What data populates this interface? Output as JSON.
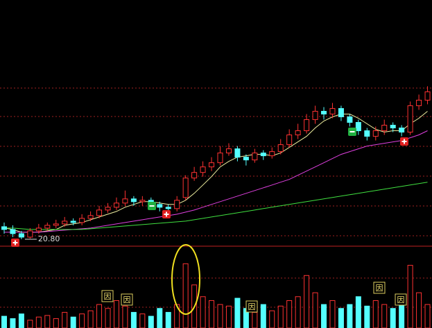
{
  "chart_data": {
    "type": "candlestick",
    "ylim": [
      20.3,
      38
    ],
    "up_color": "#ff3232",
    "down_color": "#54ffff",
    "open": [
      21.7,
      21.5,
      21.2,
      20.95,
      21.4,
      21.6,
      21.8,
      21.9,
      22.1,
      22.0,
      22.3,
      22.5,
      22.9,
      23.1,
      23.4,
      23.7,
      23.5,
      23.6,
      23.3,
      23.1,
      23.0,
      23.8,
      25.2,
      25.6,
      26.0,
      26.3,
      27.0,
      27.3,
      26.7,
      26.5,
      27.0,
      26.8,
      27.1,
      27.6,
      28.3,
      28.6,
      29.4,
      30.0,
      29.8,
      30.2,
      29.6,
      29.2,
      28.6,
      28.2,
      28.6,
      29.0,
      28.8,
      28.5,
      30.4,
      30.8
    ],
    "high": [
      22.0,
      21.8,
      21.4,
      21.6,
      21.9,
      22.0,
      22.2,
      22.4,
      22.3,
      22.6,
      22.8,
      23.2,
      23.4,
      23.8,
      24.3,
      23.9,
      23.9,
      23.8,
      23.5,
      23.3,
      23.9,
      25.4,
      26.0,
      26.4,
      26.7,
      27.5,
      27.7,
      27.5,
      26.9,
      27.3,
      27.2,
      27.4,
      28.0,
      28.7,
      29.1,
      29.8,
      30.4,
      30.3,
      30.6,
      30.4,
      29.8,
      29.4,
      28.8,
      28.9,
      29.4,
      29.2,
      29.0,
      30.7,
      31.2,
      31.8
    ],
    "low": [
      21.2,
      20.95,
      20.8,
      20.85,
      21.2,
      21.4,
      21.6,
      21.7,
      21.8,
      21.8,
      22.1,
      22.3,
      22.7,
      22.9,
      23.2,
      23.2,
      23.2,
      23.0,
      22.8,
      22.7,
      22.8,
      23.6,
      25.0,
      25.3,
      25.7,
      26.1,
      26.8,
      26.4,
      26.1,
      26.3,
      26.5,
      26.6,
      26.9,
      27.4,
      28.0,
      28.4,
      29.1,
      29.4,
      29.5,
      29.3,
      28.9,
      28.3,
      27.9,
      27.9,
      28.3,
      28.5,
      28.2,
      28.3,
      30.1,
      30.5
    ],
    "close": [
      21.5,
      21.2,
      20.95,
      21.4,
      21.6,
      21.8,
      21.9,
      22.1,
      22.0,
      22.3,
      22.5,
      22.9,
      23.1,
      23.4,
      23.7,
      23.5,
      23.6,
      23.3,
      23.1,
      23.0,
      23.6,
      25.2,
      25.6,
      26.0,
      26.3,
      27.0,
      27.3,
      26.7,
      26.5,
      27.0,
      26.8,
      27.1,
      27.6,
      28.3,
      28.6,
      29.4,
      30.0,
      29.8,
      30.2,
      29.6,
      29.2,
      28.6,
      28.2,
      28.6,
      29.0,
      28.8,
      28.5,
      30.4,
      30.8,
      31.4
    ],
    "ma_series": [
      {
        "color": "#f0f0a0",
        "values": [
          21.6,
          21.5,
          21.3,
          21.3,
          21.3,
          21.4,
          21.5,
          21.8,
          21.9,
          22.0,
          22.2,
          22.4,
          22.6,
          22.8,
          23.1,
          23.3,
          23.5,
          23.5,
          23.4,
          23.3,
          23.3,
          23.6,
          24.1,
          24.7,
          25.3,
          26.0,
          26.4,
          26.7,
          26.8,
          26.9,
          26.9,
          26.8,
          27.0,
          27.4,
          27.8,
          28.2,
          28.8,
          29.3,
          29.6,
          29.8,
          29.8,
          29.5,
          29.1,
          28.7,
          28.5,
          28.6,
          28.6,
          29.1,
          29.5,
          30.0
        ]
      },
      {
        "color": "#e040e0",
        "values": [
          21.3,
          21.3,
          21.3,
          21.3,
          21.3,
          21.35,
          21.4,
          21.45,
          21.5,
          21.55,
          21.6,
          21.7,
          21.8,
          21.9,
          22.0,
          22.1,
          22.2,
          22.3,
          22.4,
          22.5,
          22.6,
          22.75,
          22.9,
          23.1,
          23.3,
          23.5,
          23.7,
          23.9,
          24.1,
          24.3,
          24.5,
          24.7,
          24.9,
          25.1,
          25.4,
          25.7,
          26.0,
          26.3,
          26.6,
          26.9,
          27.1,
          27.3,
          27.5,
          27.6,
          27.7,
          27.8,
          27.9,
          28.1,
          28.3,
          28.6
        ]
      },
      {
        "color": "#40e040",
        "values": [
          21.6,
          21.6,
          21.55,
          21.5,
          21.5,
          21.5,
          21.5,
          21.5,
          21.5,
          21.5,
          21.55,
          21.6,
          21.65,
          21.7,
          21.75,
          21.8,
          21.85,
          21.9,
          21.95,
          22.0,
          22.05,
          22.1,
          22.2,
          22.3,
          22.4,
          22.5,
          22.6,
          22.7,
          22.8,
          22.9,
          23.0,
          23.1,
          23.2,
          23.3,
          23.4,
          23.5,
          23.6,
          23.7,
          23.8,
          23.9,
          24.0,
          24.1,
          24.2,
          24.3,
          24.4,
          24.5,
          24.6,
          24.7,
          24.8,
          24.9
        ]
      }
    ],
    "low_annotation": "20.80",
    "volume": {
      "ylim": [
        0,
        100
      ],
      "values": [
        15,
        12,
        18,
        10,
        14,
        16,
        12,
        20,
        14,
        18,
        22,
        30,
        25,
        35,
        28,
        20,
        18,
        15,
        25,
        20,
        30,
        82,
        55,
        40,
        35,
        30,
        28,
        38,
        25,
        20,
        30,
        22,
        28,
        35,
        40,
        67,
        45,
        30,
        35,
        25,
        30,
        40,
        28,
        35,
        30,
        25,
        38,
        80,
        45,
        30
      ]
    },
    "volume_flags": [
      "因",
      "因",
      "因",
      "因",
      "因"
    ]
  }
}
